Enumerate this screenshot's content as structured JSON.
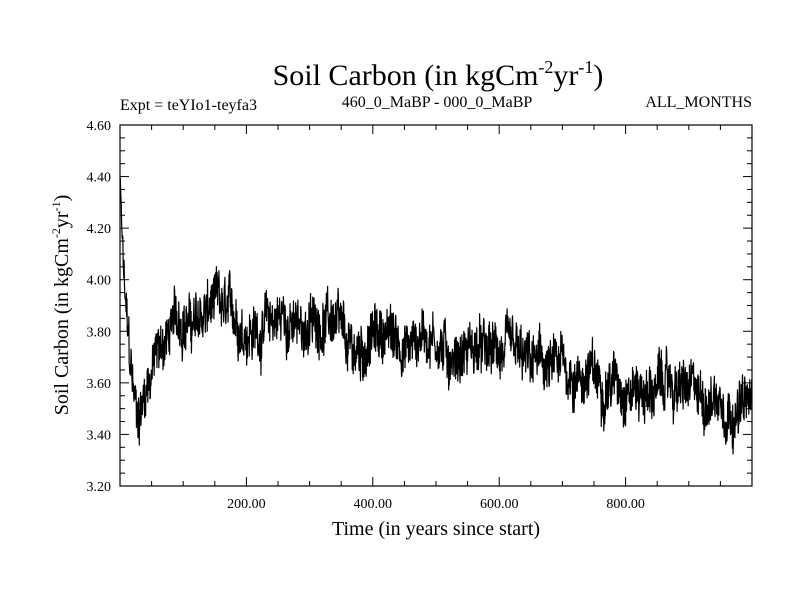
{
  "header": {
    "expt_label": "Expt = teYIo1-teyfa3",
    "period_label": "460_0_MaBP - 000_0_MaBP",
    "season_label": "ALL_MONTHS"
  },
  "chart_data": {
    "type": "line",
    "title_main": "Soil Carbon (in kgCm",
    "title_sup1": "-2",
    "title_mid": "yr",
    "title_sup2": "-1",
    "title_end": ")",
    "xlabel": "Time (in years since start)",
    "ylabel_main": "Soil Carbon (in kgCm",
    "ylabel_sup1": "-2",
    "ylabel_mid": "yr",
    "ylabel_sup2": "-1",
    "ylabel_end": ")",
    "xlim": [
      0,
      1000
    ],
    "ylim": [
      3.2,
      4.6
    ],
    "x_ticks": [
      "200.00",
      "400.00",
      "600.00",
      "800.00"
    ],
    "x_tick_values": [
      200,
      400,
      600,
      800
    ],
    "y_ticks": [
      "3.20",
      "3.40",
      "3.60",
      "3.80",
      "4.00",
      "4.20",
      "4.40",
      "4.60"
    ],
    "y_tick_values": [
      3.2,
      3.4,
      3.6,
      3.8,
      4.0,
      4.2,
      4.4,
      4.6
    ],
    "series": [
      {
        "name": "soil carbon",
        "color": "#000000",
        "x": [
          0,
          5,
          10,
          15,
          20,
          25,
          30,
          35,
          40,
          50,
          60,
          70,
          80,
          90,
          100,
          110,
          120,
          130,
          140,
          150,
          160,
          170,
          180,
          190,
          200,
          220,
          240,
          260,
          280,
          300,
          320,
          340,
          360,
          380,
          400,
          420,
          440,
          460,
          480,
          500,
          520,
          540,
          560,
          580,
          600,
          620,
          640,
          660,
          680,
          700,
          720,
          740,
          760,
          780,
          800,
          820,
          840,
          860,
          880,
          900,
          920,
          940,
          960,
          980,
          1000
        ],
        "y": [
          4.38,
          4.05,
          3.85,
          3.7,
          3.58,
          3.5,
          3.48,
          3.52,
          3.58,
          3.66,
          3.72,
          3.76,
          3.8,
          3.84,
          3.86,
          3.84,
          3.82,
          3.85,
          3.88,
          3.9,
          3.87,
          3.85,
          3.86,
          3.84,
          3.82,
          3.8,
          3.84,
          3.86,
          3.8,
          3.82,
          3.85,
          3.84,
          3.7,
          3.72,
          3.78,
          3.8,
          3.76,
          3.74,
          3.8,
          3.78,
          3.7,
          3.72,
          3.74,
          3.7,
          3.72,
          3.7,
          3.66,
          3.68,
          3.64,
          3.66,
          3.62,
          3.64,
          3.6,
          3.62,
          3.6,
          3.58,
          3.56,
          3.6,
          3.58,
          3.56,
          3.54,
          3.56,
          3.52,
          3.5,
          3.52
        ],
        "band": [
          0.05,
          0.12,
          0.14,
          0.16,
          0.16,
          0.16,
          0.17,
          0.16,
          0.15,
          0.15,
          0.15,
          0.15,
          0.15,
          0.16,
          0.16,
          0.16,
          0.16,
          0.16,
          0.17,
          0.17,
          0.16,
          0.16,
          0.16,
          0.16,
          0.16,
          0.16,
          0.16,
          0.16,
          0.16,
          0.16,
          0.16,
          0.16,
          0.17,
          0.17,
          0.16,
          0.16,
          0.16,
          0.16,
          0.16,
          0.16,
          0.16,
          0.16,
          0.16,
          0.16,
          0.16,
          0.16,
          0.16,
          0.16,
          0.16,
          0.16,
          0.16,
          0.16,
          0.16,
          0.16,
          0.16,
          0.16,
          0.16,
          0.16,
          0.16,
          0.16,
          0.16,
          0.16,
          0.16,
          0.16,
          0.16
        ]
      }
    ]
  }
}
